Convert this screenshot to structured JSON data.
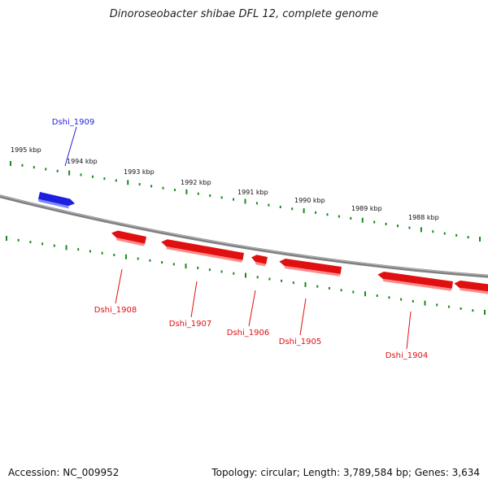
{
  "title": "Dinoroseobacter shibae DFL 12, complete genome",
  "footer": {
    "accession": "Accession: NC_009952",
    "stats": "Topology: circular; Length: 3,789,584 bp; Genes: 3,634"
  },
  "scale": {
    "labels": [
      "1995 kbp",
      "1994 kbp",
      "1993 kbp",
      "1992 kbp",
      "1991 kbp",
      "1990 kbp",
      "1989 kbp",
      "1988 kbp"
    ]
  },
  "genes": [
    {
      "name": "Dshi_1909",
      "strand": "forward",
      "color": "#1f1fe0"
    },
    {
      "name": "Dshi_1908",
      "strand": "reverse",
      "color": "#e01010"
    },
    {
      "name": "Dshi_1907",
      "strand": "reverse",
      "color": "#e01010"
    },
    {
      "name": "Dshi_1906",
      "strand": "reverse",
      "color": "#e01010"
    },
    {
      "name": "Dshi_1905",
      "strand": "reverse",
      "color": "#e01010"
    },
    {
      "name": "Dshi_1904",
      "strand": "reverse",
      "color": "#e01010"
    }
  ],
  "colors": {
    "forward": "#1f1fe0",
    "reverse": "#e01010",
    "ticks": "#1a8a1a",
    "backbone": "#808080"
  }
}
